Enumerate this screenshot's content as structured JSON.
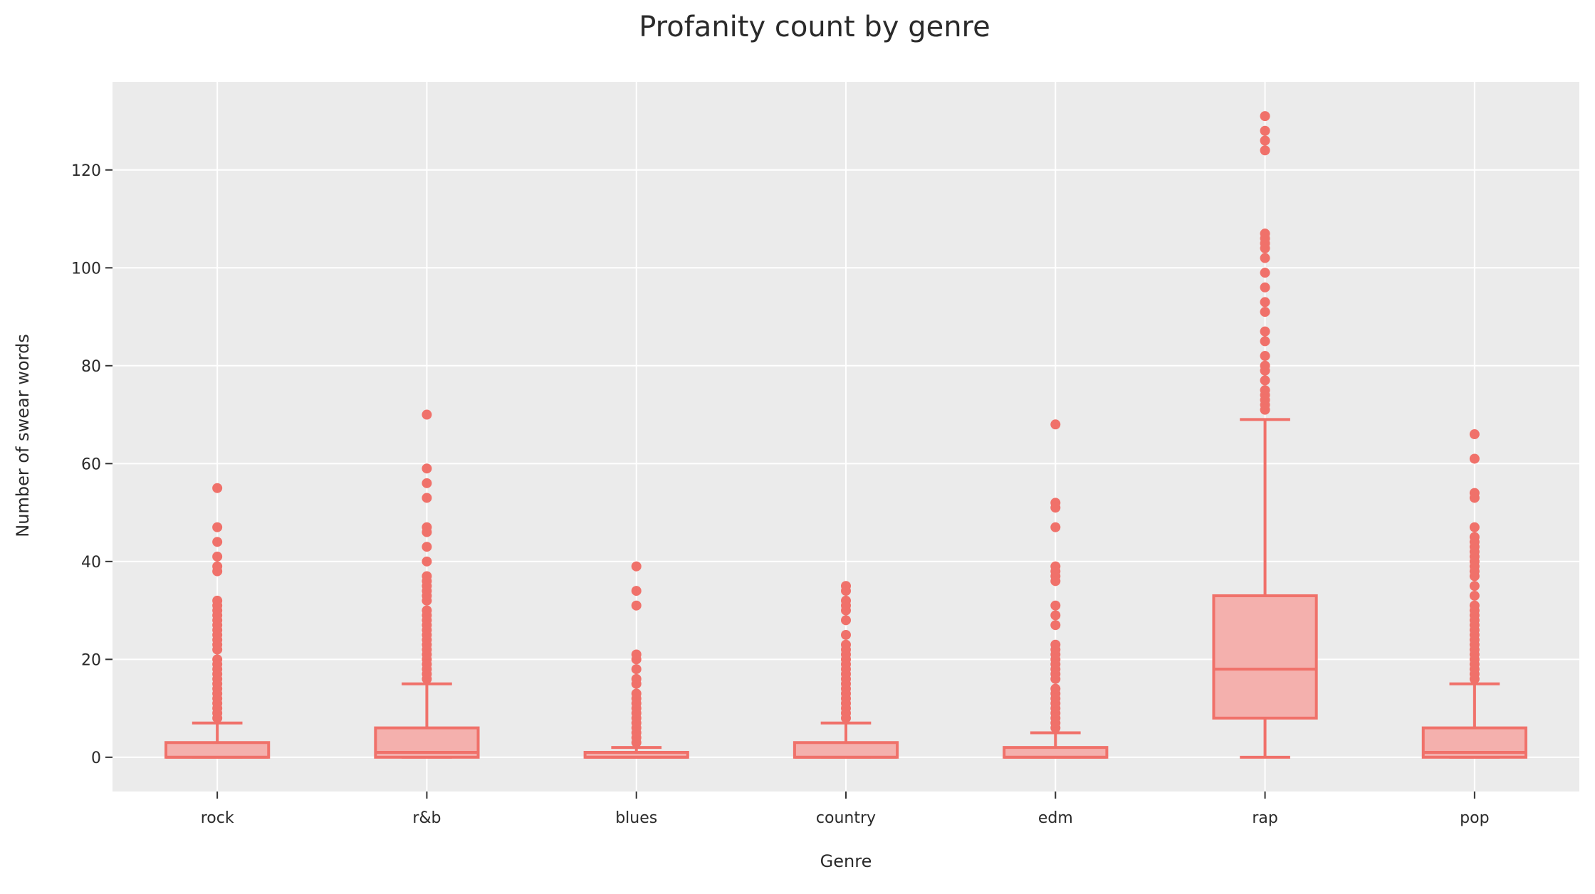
{
  "chart_data": {
    "type": "box",
    "title": "Profanity count by genre",
    "xlabel": "Genre",
    "ylabel": "Number of swear words",
    "ylim": [
      -7,
      138
    ],
    "yticks": [
      0,
      20,
      40,
      60,
      80,
      100,
      120
    ],
    "grid": true,
    "legend": "none",
    "colors": {
      "stroke": "#f0716a",
      "fill": "#f4b0ad",
      "plot_bg": "#ebebeb",
      "grid": "#ffffff"
    },
    "categories": [
      "rock",
      "r&b",
      "blues",
      "country",
      "edm",
      "rap",
      "pop"
    ],
    "boxes": [
      {
        "category": "rock",
        "min": 0,
        "q1": 0,
        "median": 0,
        "q3": 3,
        "max": 7,
        "outliers": [
          8,
          9,
          10,
          11,
          12,
          13,
          14,
          15,
          16,
          17,
          18,
          19,
          20,
          22,
          23,
          24,
          25,
          26,
          27,
          28,
          29,
          30,
          31,
          32,
          38,
          39,
          41,
          44,
          47,
          55
        ]
      },
      {
        "category": "r&b",
        "min": 0,
        "q1": 0,
        "median": 1,
        "q3": 6,
        "max": 15,
        "outliers": [
          16,
          17,
          18,
          19,
          20,
          21,
          22,
          23,
          24,
          25,
          26,
          27,
          28,
          29,
          30,
          32,
          33,
          34,
          35,
          36,
          37,
          40,
          43,
          46,
          47,
          53,
          56,
          59,
          70
        ]
      },
      {
        "category": "blues",
        "min": 0,
        "q1": 0,
        "median": 0,
        "q3": 1,
        "max": 2,
        "outliers": [
          3,
          4,
          5,
          6,
          7,
          8,
          9,
          10,
          11,
          12,
          13,
          15,
          16,
          18,
          20,
          21,
          31,
          34,
          39
        ]
      },
      {
        "category": "country",
        "min": 0,
        "q1": 0,
        "median": 0,
        "q3": 3,
        "max": 7,
        "outliers": [
          8,
          9,
          10,
          11,
          12,
          13,
          14,
          15,
          16,
          17,
          18,
          19,
          20,
          21,
          22,
          23,
          25,
          28,
          30,
          31,
          32,
          34,
          35
        ]
      },
      {
        "category": "edm",
        "min": 0,
        "q1": 0,
        "median": 0,
        "q3": 2,
        "max": 5,
        "outliers": [
          6,
          7,
          8,
          9,
          10,
          11,
          12,
          13,
          14,
          16,
          17,
          18,
          19,
          20,
          21,
          22,
          23,
          27,
          29,
          31,
          36,
          37,
          38,
          39,
          47,
          51,
          52,
          68
        ]
      },
      {
        "category": "rap",
        "min": 0,
        "q1": 8,
        "median": 18,
        "q3": 33,
        "max": 69,
        "outliers": [
          71,
          72,
          73,
          74,
          75,
          77,
          79,
          80,
          82,
          85,
          87,
          91,
          93,
          96,
          99,
          102,
          104,
          105,
          106,
          107,
          124,
          126,
          128,
          131
        ]
      },
      {
        "category": "pop",
        "min": 0,
        "q1": 0,
        "median": 1,
        "q3": 6,
        "max": 15,
        "outliers": [
          16,
          17,
          18,
          19,
          20,
          21,
          22,
          23,
          24,
          25,
          26,
          27,
          28,
          29,
          30,
          31,
          33,
          35,
          37,
          38,
          39,
          40,
          41,
          42,
          43,
          44,
          45,
          47,
          53,
          54,
          61,
          66
        ]
      }
    ]
  }
}
